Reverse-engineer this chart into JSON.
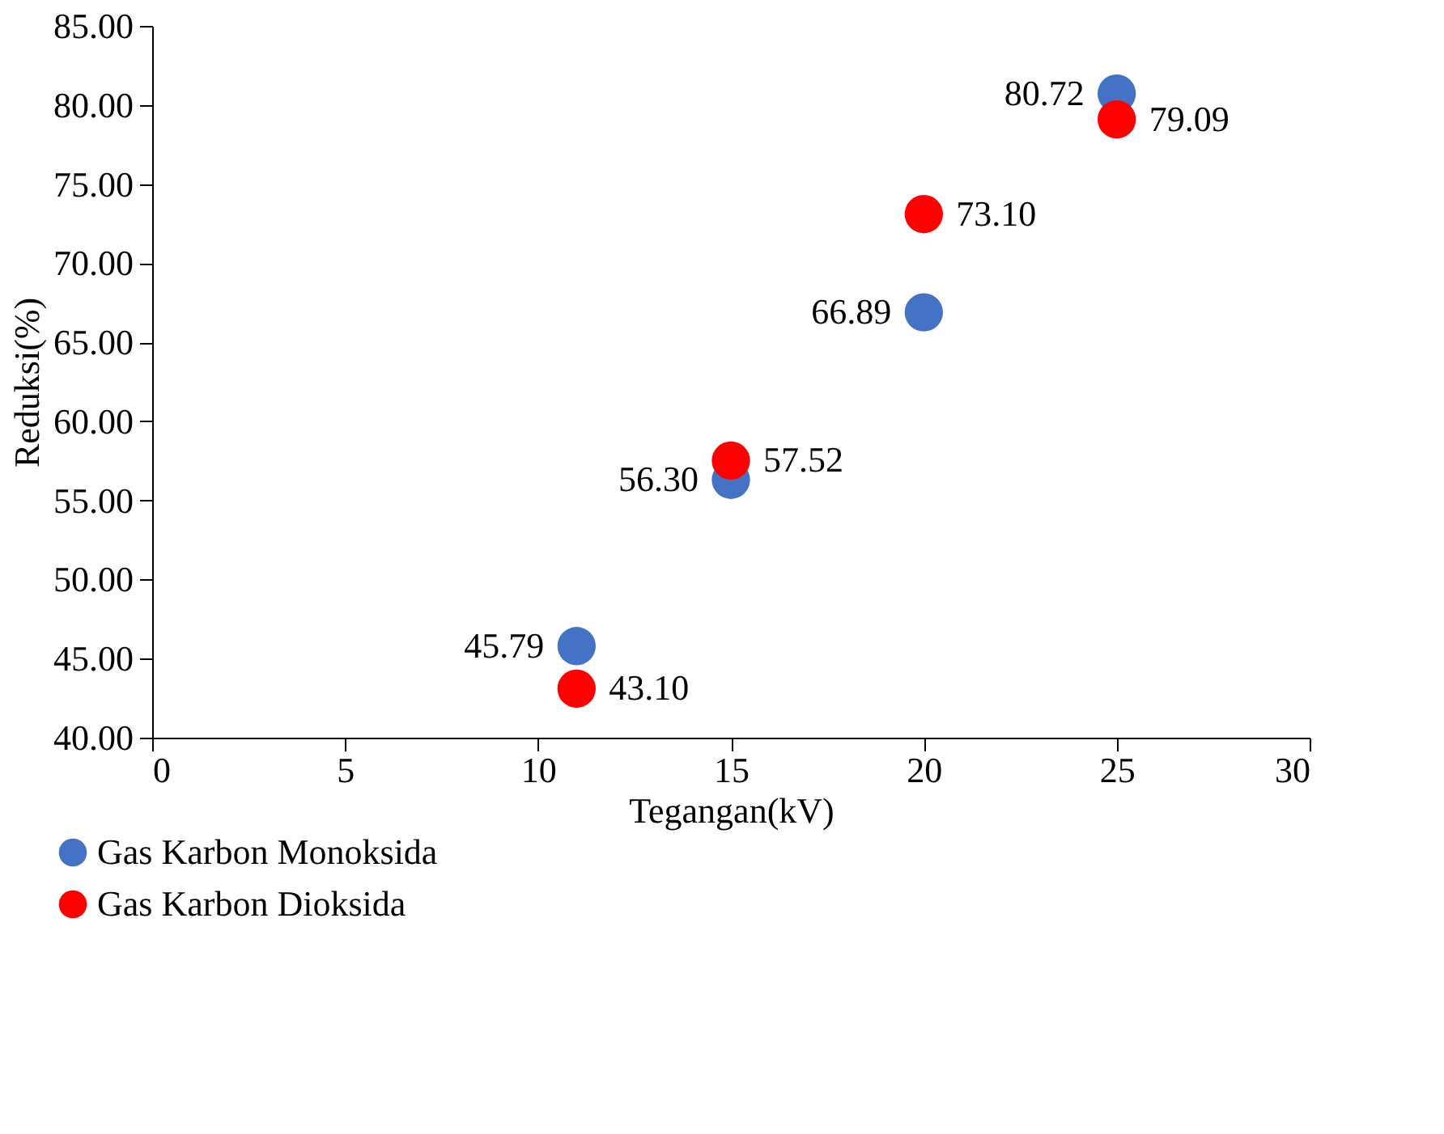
{
  "chart_data": {
    "type": "scatter",
    "xlabel": "Tegangan(kV)",
    "ylabel": "Reduksi(%)",
    "x": [
      11,
      15,
      20,
      25
    ],
    "series": [
      {
        "name": "Gas Karbon Monoksida",
        "color": "#4472c4",
        "values": [
          45.79,
          56.3,
          66.89,
          80.72
        ],
        "value_labels": [
          "45.79",
          "56.30",
          "66.89",
          "80.72"
        ]
      },
      {
        "name": "Gas Karbon Dioksida",
        "color": "#ff0000",
        "values": [
          43.1,
          57.52,
          73.1,
          79.09
        ],
        "value_labels": [
          "43.10",
          "57.52",
          "73.10",
          "79.09"
        ]
      }
    ],
    "xlim": [
      0,
      30
    ],
    "xticks": [
      0,
      5,
      10,
      15,
      20,
      25,
      30
    ],
    "ylim": [
      40,
      85
    ],
    "yticks": [
      {
        "value": 40,
        "label": "40.00"
      },
      {
        "value": 45,
        "label": "45.00"
      },
      {
        "value": 50,
        "label": "50.00"
      },
      {
        "value": 55,
        "label": "55.00"
      },
      {
        "value": 60,
        "label": "60.00"
      },
      {
        "value": 65,
        "label": "65.00"
      },
      {
        "value": 70,
        "label": "70.00"
      },
      {
        "value": 75,
        "label": "75.00"
      },
      {
        "value": 80,
        "label": "80.00"
      },
      {
        "value": 85,
        "label": "85.00"
      }
    ],
    "marker": "circle",
    "grid": false,
    "legend": "bottom left"
  }
}
